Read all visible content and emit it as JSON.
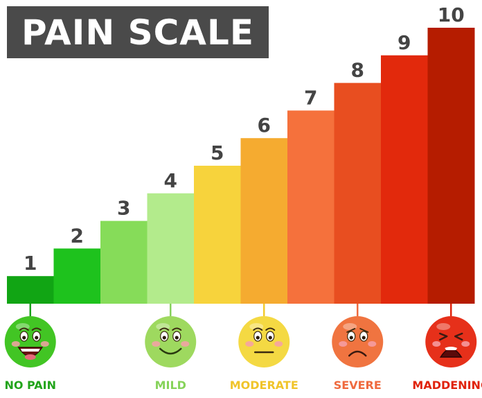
{
  "title": "PAIN SCALE",
  "chart_data": {
    "type": "bar",
    "categories": [
      "1",
      "2",
      "3",
      "4",
      "5",
      "6",
      "7",
      "8",
      "9",
      "10"
    ],
    "values": [
      1,
      2,
      3,
      4,
      5,
      6,
      7,
      8,
      9,
      10
    ],
    "ylim": [
      0,
      10
    ],
    "grid": false,
    "colors": [
      "#11a514",
      "#1ec21d",
      "#86dc59",
      "#b3eb8c",
      "#f7d33c",
      "#f5ab30",
      "#f5713c",
      "#e84e20",
      "#e2290c",
      "#b51c00"
    ],
    "label_color": "#444444"
  },
  "faces": [
    {
      "label": "NO PAIN",
      "level": 1,
      "color": "#1aa11b",
      "face": "#42c524",
      "mood": "laugh",
      "label_color": "#22a41b"
    },
    {
      "label": "MILD",
      "level": 4,
      "color": "#86d15c",
      "face": "#9ed95f",
      "mood": "smile",
      "label_color": "#86d35a"
    },
    {
      "label": "MODERATE",
      "level": 6,
      "color": "#f2cb2f",
      "face": "#f4d943",
      "mood": "neutral",
      "label_color": "#f0c42a"
    },
    {
      "label": "SEVERE",
      "level": 8,
      "color": "#ef6a3e",
      "face": "#f07440",
      "mood": "sad",
      "label_color": "#ef6a3e"
    },
    {
      "label": "MADDENING",
      "level": 10,
      "color": "#e0230c",
      "face": "#e6301a",
      "mood": "cry",
      "label_color": "#e0230c"
    }
  ]
}
